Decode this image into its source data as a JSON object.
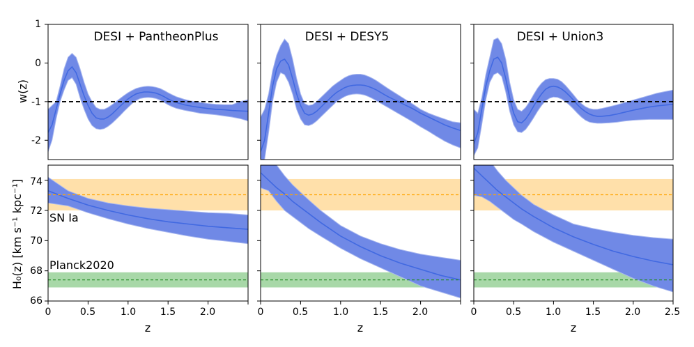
{
  "chart_data": {
    "type": "line",
    "colors": {
      "curve": "#4169e1",
      "band": "#7089e6",
      "band_edge": "#a9b8ef",
      "sn_line": "#ffa500",
      "sn_band": "#ffe0aa",
      "planck_line": "#228b22",
      "planck_band": "#a8d8a8",
      "reference": "#000000"
    },
    "x_axis": {
      "label": "z",
      "range": [
        0,
        2.5
      ],
      "ticks": [
        {
          "value": 0,
          "label": "0"
        },
        {
          "value": 0.5,
          "label": "0.5"
        },
        {
          "value": 1.0,
          "label": "1.0"
        },
        {
          "value": 1.5,
          "label": "1.5"
        },
        {
          "value": 2.0,
          "label": "2.0"
        },
        {
          "value": 2.5,
          "label": "2.5"
        }
      ]
    },
    "top_axis": {
      "label": "w(z)",
      "range": [
        -2.5,
        1
      ],
      "ticks": [
        {
          "value": 1,
          "label": "1"
        },
        {
          "value": 0,
          "label": "0"
        },
        {
          "value": -1,
          "label": "-1"
        },
        {
          "value": -2,
          "label": "-2"
        }
      ],
      "reference_line": -1
    },
    "bottom_axis": {
      "label": "H₀(z) [km s⁻¹ kpc⁻¹]",
      "range": [
        66,
        75
      ],
      "ticks": [
        {
          "value": 74,
          "label": "74"
        },
        {
          "value": 72,
          "label": "72"
        },
        {
          "value": 70,
          "label": "70"
        },
        {
          "value": 68,
          "label": "68"
        },
        {
          "value": 66,
          "label": "66"
        }
      ]
    },
    "references": {
      "sn": {
        "label": "SN Ia",
        "center": 73.04,
        "lower": 72.0,
        "upper": 74.08
      },
      "planck": {
        "label": "Planck2020",
        "center": 67.4,
        "lower": 66.9,
        "upper": 67.9
      }
    },
    "panels": [
      {
        "title": "DESI + PantheonPlus",
        "w_z": {
          "x": [
            0.0,
            0.05,
            0.1,
            0.15,
            0.2,
            0.25,
            0.3,
            0.35,
            0.4,
            0.45,
            0.5,
            0.55,
            0.6,
            0.65,
            0.7,
            0.75,
            0.8,
            0.85,
            0.9,
            0.95,
            1.0,
            1.05,
            1.1,
            1.15,
            1.2,
            1.25,
            1.3,
            1.35,
            1.4,
            1.45,
            1.5,
            1.55,
            1.6,
            1.7,
            1.8,
            1.9,
            2.0,
            2.1,
            2.2,
            2.3,
            2.4,
            2.5
          ],
          "mean": [
            -1.8,
            -1.6,
            -1.2,
            -0.8,
            -0.45,
            -0.2,
            -0.1,
            -0.25,
            -0.55,
            -0.85,
            -1.1,
            -1.3,
            -1.42,
            -1.45,
            -1.45,
            -1.4,
            -1.32,
            -1.22,
            -1.12,
            -1.02,
            -0.93,
            -0.86,
            -0.8,
            -0.77,
            -0.75,
            -0.75,
            -0.76,
            -0.78,
            -0.82,
            -0.87,
            -0.93,
            -0.98,
            -1.02,
            -1.08,
            -1.12,
            -1.15,
            -1.18,
            -1.2,
            -1.21,
            -1.23,
            -1.24,
            -1.25
          ],
          "upper": [
            -1.2,
            -1.1,
            -1.0,
            -0.6,
            -0.15,
            0.15,
            0.25,
            0.15,
            -0.15,
            -0.5,
            -0.8,
            -1.0,
            -1.15,
            -1.2,
            -1.2,
            -1.15,
            -1.08,
            -1.0,
            -0.92,
            -0.84,
            -0.77,
            -0.71,
            -0.66,
            -0.63,
            -0.61,
            -0.6,
            -0.61,
            -0.63,
            -0.66,
            -0.71,
            -0.77,
            -0.82,
            -0.87,
            -0.94,
            -0.99,
            -1.02,
            -1.05,
            -1.07,
            -1.08,
            -1.08,
            -1.0,
            -0.95
          ],
          "lower": [
            -2.3,
            -2.0,
            -1.45,
            -1.0,
            -0.7,
            -0.45,
            -0.38,
            -0.55,
            -0.9,
            -1.2,
            -1.45,
            -1.62,
            -1.7,
            -1.72,
            -1.7,
            -1.64,
            -1.56,
            -1.46,
            -1.36,
            -1.25,
            -1.15,
            -1.05,
            -0.97,
            -0.92,
            -0.9,
            -0.89,
            -0.9,
            -0.92,
            -0.96,
            -1.02,
            -1.08,
            -1.13,
            -1.17,
            -1.22,
            -1.26,
            -1.3,
            -1.32,
            -1.34,
            -1.37,
            -1.4,
            -1.44,
            -1.5
          ]
        },
        "h0_z": {
          "x": [
            0,
            0.25,
            0.5,
            0.75,
            1.0,
            1.25,
            1.5,
            1.75,
            2.0,
            2.25,
            2.5
          ],
          "mean": [
            73.3,
            72.8,
            72.35,
            72.0,
            71.7,
            71.45,
            71.25,
            71.1,
            70.95,
            70.85,
            70.75
          ],
          "upper": [
            74.2,
            73.3,
            72.8,
            72.5,
            72.3,
            72.15,
            72.05,
            71.95,
            71.85,
            71.8,
            71.7
          ],
          "lower": [
            72.5,
            72.3,
            71.85,
            71.45,
            71.1,
            70.8,
            70.55,
            70.3,
            70.1,
            69.95,
            69.8
          ]
        }
      },
      {
        "title": "DESI + DESY5",
        "w_z": {
          "x": [
            0.0,
            0.05,
            0.1,
            0.15,
            0.2,
            0.25,
            0.3,
            0.35,
            0.4,
            0.45,
            0.5,
            0.55,
            0.6,
            0.65,
            0.7,
            0.75,
            0.8,
            0.85,
            0.9,
            0.95,
            1.0,
            1.05,
            1.1,
            1.15,
            1.2,
            1.25,
            1.3,
            1.35,
            1.4,
            1.45,
            1.5,
            1.55,
            1.6,
            1.7,
            1.8,
            1.9,
            2.0,
            2.1,
            2.2,
            2.3,
            2.4,
            2.5
          ],
          "mean": [
            -2.3,
            -2.0,
            -1.3,
            -0.6,
            -0.15,
            0.05,
            0.1,
            -0.05,
            -0.4,
            -0.8,
            -1.1,
            -1.3,
            -1.35,
            -1.32,
            -1.25,
            -1.15,
            -1.05,
            -0.95,
            -0.85,
            -0.76,
            -0.7,
            -0.64,
            -0.6,
            -0.58,
            -0.57,
            -0.57,
            -0.58,
            -0.61,
            -0.65,
            -0.7,
            -0.76,
            -0.82,
            -0.88,
            -0.98,
            -1.08,
            -1.18,
            -1.3,
            -1.4,
            -1.5,
            -1.6,
            -1.68,
            -1.75
          ],
          "upper": [
            -1.4,
            -1.2,
            -0.8,
            -0.2,
            0.2,
            0.45,
            0.62,
            0.5,
            0.1,
            -0.4,
            -0.8,
            -1.05,
            -1.1,
            -1.08,
            -1.0,
            -0.9,
            -0.8,
            -0.7,
            -0.6,
            -0.52,
            -0.45,
            -0.38,
            -0.33,
            -0.3,
            -0.29,
            -0.29,
            -0.31,
            -0.35,
            -0.4,
            -0.46,
            -0.53,
            -0.6,
            -0.67,
            -0.8,
            -0.93,
            -1.06,
            -1.2,
            -1.3,
            -1.38,
            -1.45,
            -1.52,
            -1.55
          ],
          "lower": [
            -2.5,
            -2.5,
            -1.8,
            -1.0,
            -0.5,
            -0.25,
            -0.3,
            -0.5,
            -0.8,
            -1.2,
            -1.45,
            -1.6,
            -1.62,
            -1.58,
            -1.5,
            -1.4,
            -1.3,
            -1.2,
            -1.1,
            -1.0,
            -0.93,
            -0.87,
            -0.83,
            -0.81,
            -0.8,
            -0.81,
            -0.83,
            -0.87,
            -0.92,
            -0.98,
            -1.04,
            -1.1,
            -1.16,
            -1.28,
            -1.4,
            -1.52,
            -1.65,
            -1.77,
            -1.9,
            -2.02,
            -2.12,
            -2.2
          ]
        },
        "h0_z": {
          "x": [
            0,
            0.1,
            0.2,
            0.3,
            0.4,
            0.5,
            0.6,
            0.75,
            1.0,
            1.25,
            1.5,
            1.75,
            2.0,
            2.25,
            2.5
          ],
          "mean": [
            74.5,
            74.0,
            73.5,
            73.1,
            72.6,
            72.2,
            71.8,
            71.2,
            70.3,
            69.6,
            69.0,
            68.5,
            68.1,
            67.7,
            67.4
          ],
          "upper": [
            76.8,
            76.0,
            75.0,
            74.3,
            73.7,
            73.2,
            72.7,
            72.0,
            71.0,
            70.3,
            69.8,
            69.4,
            69.1,
            68.9,
            68.7
          ],
          "lower": [
            73.5,
            73.3,
            72.6,
            72.0,
            71.6,
            71.2,
            70.8,
            70.3,
            69.5,
            68.8,
            68.2,
            67.6,
            67.0,
            66.6,
            66.2
          ]
        }
      },
      {
        "title": "DESI + Union3",
        "w_z": {
          "x": [
            0.0,
            0.05,
            0.1,
            0.15,
            0.2,
            0.25,
            0.3,
            0.35,
            0.4,
            0.45,
            0.5,
            0.55,
            0.6,
            0.65,
            0.7,
            0.75,
            0.8,
            0.85,
            0.9,
            0.95,
            1.0,
            1.05,
            1.1,
            1.15,
            1.2,
            1.25,
            1.3,
            1.35,
            1.4,
            1.45,
            1.5,
            1.55,
            1.6,
            1.7,
            1.8,
            1.9,
            2.0,
            2.1,
            2.2,
            2.3,
            2.4,
            2.5
          ],
          "mean": [
            -2.1,
            -1.8,
            -1.2,
            -0.6,
            -0.2,
            0.1,
            0.15,
            0.0,
            -0.4,
            -0.9,
            -1.3,
            -1.52,
            -1.55,
            -1.45,
            -1.3,
            -1.12,
            -0.95,
            -0.8,
            -0.68,
            -0.62,
            -0.6,
            -0.62,
            -0.67,
            -0.75,
            -0.85,
            -0.96,
            -1.08,
            -1.18,
            -1.26,
            -1.32,
            -1.36,
            -1.38,
            -1.38,
            -1.36,
            -1.32,
            -1.27,
            -1.22,
            -1.18,
            -1.14,
            -1.11,
            -1.09,
            -1.07
          ],
          "upper": [
            -1.2,
            -1.3,
            -0.9,
            -0.3,
            0.15,
            0.6,
            0.65,
            0.5,
            0.1,
            -0.5,
            -0.95,
            -1.2,
            -1.25,
            -1.15,
            -1.0,
            -0.82,
            -0.65,
            -0.52,
            -0.43,
            -0.4,
            -0.4,
            -0.42,
            -0.48,
            -0.58,
            -0.7,
            -0.82,
            -0.95,
            -1.05,
            -1.13,
            -1.18,
            -1.2,
            -1.2,
            -1.18,
            -1.13,
            -1.08,
            -1.02,
            -0.96,
            -0.9,
            -0.84,
            -0.78,
            -0.74,
            -0.7
          ],
          "lower": [
            -2.4,
            -2.2,
            -1.6,
            -0.95,
            -0.5,
            -0.3,
            -0.25,
            -0.35,
            -0.75,
            -1.25,
            -1.6,
            -1.78,
            -1.8,
            -1.72,
            -1.58,
            -1.42,
            -1.25,
            -1.1,
            -0.98,
            -0.91,
            -0.88,
            -0.89,
            -0.93,
            -1.0,
            -1.09,
            -1.19,
            -1.3,
            -1.4,
            -1.48,
            -1.53,
            -1.55,
            -1.56,
            -1.56,
            -1.55,
            -1.53,
            -1.5,
            -1.48,
            -1.47,
            -1.46,
            -1.46,
            -1.46,
            -1.46
          ]
        },
        "h0_z": {
          "x": [
            0,
            0.1,
            0.2,
            0.3,
            0.4,
            0.5,
            0.6,
            0.75,
            1.0,
            1.25,
            1.5,
            1.75,
            2.0,
            2.25,
            2.5
          ],
          "mean": [
            74.8,
            74.3,
            73.8,
            73.3,
            72.9,
            72.5,
            72.1,
            71.6,
            70.85,
            70.25,
            69.75,
            69.3,
            68.95,
            68.65,
            68.4
          ],
          "upper": [
            77.0,
            76.2,
            75.3,
            74.6,
            74.0,
            73.5,
            73.0,
            72.4,
            71.7,
            71.1,
            70.8,
            70.55,
            70.35,
            70.2,
            70.1
          ],
          "lower": [
            73.0,
            72.9,
            72.6,
            72.2,
            71.8,
            71.4,
            71.1,
            70.6,
            69.9,
            69.3,
            68.7,
            68.1,
            67.5,
            67.0,
            66.6
          ]
        }
      }
    ]
  }
}
